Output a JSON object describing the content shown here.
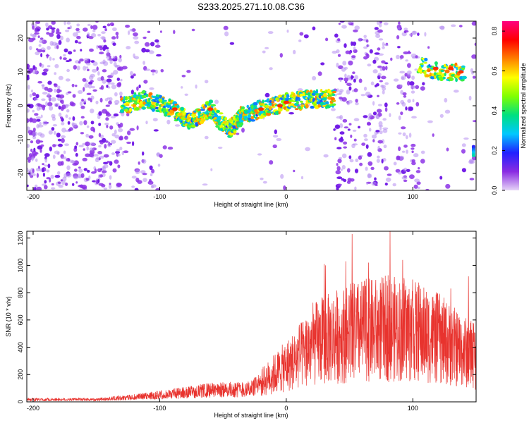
{
  "chart_data": [
    {
      "type": "heatmap",
      "title": "S233.2025.271.10.08.C36",
      "xlabel": "Height of straight line (km)",
      "ylabel": "Frequency (Hz)",
      "xlim": [
        -205,
        150
      ],
      "ylim": [
        -25,
        25
      ],
      "x_ticks": [
        -200,
        -100,
        0,
        100
      ],
      "y_ticks": [
        -20,
        -10,
        0,
        10,
        20
      ],
      "colorbar": {
        "label": "Normalized spectral amplitude",
        "range": [
          0.0,
          0.85
        ],
        "ticks": [
          0.0,
          0.2,
          0.4,
          0.6,
          0.8
        ],
        "colors": [
          "#e6d5f7",
          "#8a2be2",
          "#2020ff",
          "#00c8ff",
          "#00e080",
          "#80ff00",
          "#ffff00",
          "#ff8000",
          "#ff0000",
          "#ff0080"
        ]
      },
      "ridge": [
        {
          "x": -130,
          "y": 0
        },
        {
          "x": -110,
          "y": 2
        },
        {
          "x": -90,
          "y": -1
        },
        {
          "x": -75,
          "y": -5
        },
        {
          "x": -60,
          "y": -1
        },
        {
          "x": -45,
          "y": -7
        },
        {
          "x": -35,
          "y": -3
        },
        {
          "x": -20,
          "y": -1
        },
        {
          "x": 0,
          "y": 1
        },
        {
          "x": 20,
          "y": 2
        },
        {
          "x": 38,
          "y": 2
        },
        {
          "x": 105,
          "y": 12
        },
        {
          "x": 120,
          "y": 10
        },
        {
          "x": 140,
          "y": 10
        },
        {
          "x": 148,
          "y": -13
        }
      ]
    },
    {
      "type": "line",
      "xlabel": "Height of straight line (km)",
      "ylabel": "SNR (10 * v/v)",
      "xlim": [
        -205,
        150
      ],
      "ylim": [
        0,
        1250
      ],
      "x_ticks": [
        -200,
        -100,
        0,
        100
      ],
      "y_ticks": [
        0,
        200,
        400,
        600,
        800,
        1000,
        1200
      ],
      "color": "#e8332e",
      "envelope": [
        {
          "x": -205,
          "level": 20
        },
        {
          "x": -150,
          "level": 20
        },
        {
          "x": -120,
          "level": 40
        },
        {
          "x": -90,
          "level": 70
        },
        {
          "x": -60,
          "level": 100
        },
        {
          "x": -30,
          "level": 110
        },
        {
          "x": -20,
          "level": 150
        },
        {
          "x": -5,
          "level": 250
        },
        {
          "x": 10,
          "level": 350
        },
        {
          "x": 20,
          "level": 450
        },
        {
          "x": 40,
          "level": 520
        },
        {
          "x": 60,
          "level": 560
        },
        {
          "x": 80,
          "level": 580
        },
        {
          "x": 100,
          "level": 560
        },
        {
          "x": 120,
          "level": 500
        },
        {
          "x": 140,
          "level": 400
        },
        {
          "x": 150,
          "level": 350
        }
      ],
      "peaks": [
        {
          "x": 52,
          "y": 1230
        },
        {
          "x": 82,
          "y": 1250
        },
        {
          "x": 31,
          "y": 1000
        },
        {
          "x": 47,
          "y": 1030
        },
        {
          "x": 30,
          "y": 1010
        },
        {
          "x": 65,
          "y": 1020
        },
        {
          "x": 92,
          "y": 1040
        },
        {
          "x": 144,
          "y": 920
        },
        {
          "x": 130,
          "y": 830
        }
      ]
    }
  ]
}
